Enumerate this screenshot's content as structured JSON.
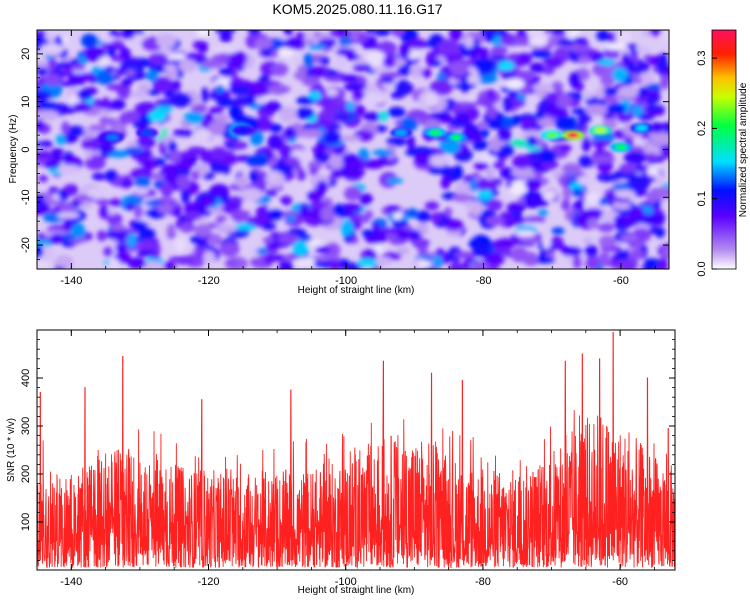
{
  "title": "KOM5.2025.080.11.16.G17",
  "chart_data": [
    {
      "type": "heatmap",
      "xlabel": "Height of straight line (km)",
      "ylabel": "Frequency (Hz)",
      "xlim": [
        -145,
        -53
      ],
      "ylim": [
        -25,
        25
      ],
      "xticks": [
        -140,
        -120,
        -100,
        -80,
        -60
      ],
      "yticks": [
        -20,
        -10,
        0,
        10,
        20
      ],
      "colorbar": {
        "label": "Normalized spectral amplitude",
        "range": [
          0.0,
          0.34
        ],
        "ticks": [
          0.0,
          0.1,
          0.2,
          0.3
        ],
        "colormap": [
          "#ffffff",
          "#8a2be2",
          "#0000ff",
          "#00ffff",
          "#00ff00",
          "#ffff00",
          "#ff0000",
          "#ff1493"
        ]
      },
      "hotspots": [
        {
          "x": -134,
          "y": 2.5,
          "value": 0.13
        },
        {
          "x": -129,
          "y": 3.5,
          "value": 0.12
        },
        {
          "x": -115,
          "y": 4,
          "value": 0.11
        },
        {
          "x": -92,
          "y": 3.5,
          "value": 0.14
        },
        {
          "x": -87,
          "y": 3.5,
          "value": 0.2
        },
        {
          "x": -84,
          "y": 2.5,
          "value": 0.19
        },
        {
          "x": -70,
          "y": 3,
          "value": 0.22
        },
        {
          "x": -67,
          "y": 3,
          "value": 0.33
        },
        {
          "x": -63,
          "y": 4,
          "value": 0.24
        },
        {
          "x": -60,
          "y": 0.5,
          "value": 0.2
        },
        {
          "x": -57,
          "y": 4.5,
          "value": 0.15
        }
      ]
    },
    {
      "type": "line",
      "xlabel": "Height of straight line (km)",
      "ylabel": "SNR (10 * v/v)",
      "xlim": [
        -145,
        -52
      ],
      "ylim": [
        0,
        500
      ],
      "xticks": [
        -140,
        -120,
        -100,
        -80,
        -60
      ],
      "yticks": [
        100,
        200,
        300,
        400
      ],
      "color": "#ff2020",
      "peaks": [
        {
          "x": -144.5,
          "y": 370
        },
        {
          "x": -138,
          "y": 380
        },
        {
          "x": -132.5,
          "y": 445
        },
        {
          "x": -121,
          "y": 355
        },
        {
          "x": -108,
          "y": 375
        },
        {
          "x": -94.5,
          "y": 435
        },
        {
          "x": -87.5,
          "y": 410
        },
        {
          "x": -83,
          "y": 395
        },
        {
          "x": -68,
          "y": 435
        },
        {
          "x": -65.5,
          "y": 450
        },
        {
          "x": -63,
          "y": 440
        },
        {
          "x": -61,
          "y": 495
        },
        {
          "x": -56,
          "y": 400
        },
        {
          "x": -53,
          "y": 295
        }
      ]
    }
  ]
}
